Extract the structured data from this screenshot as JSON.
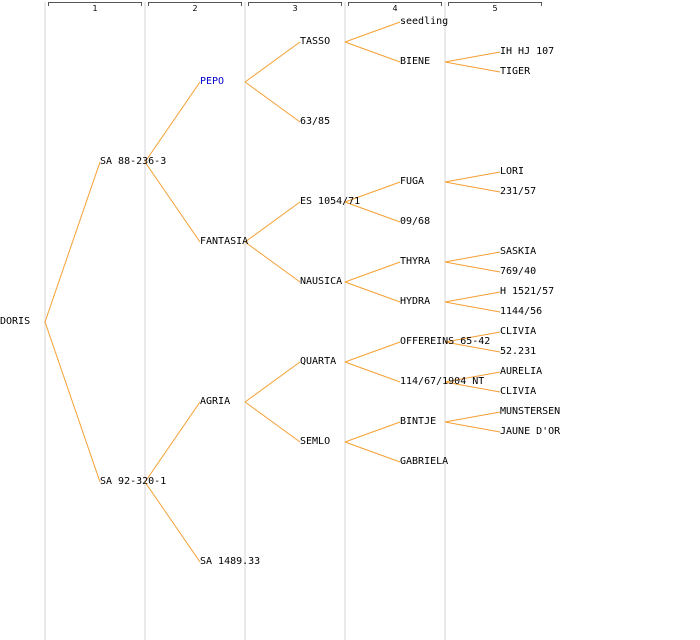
{
  "generations": [
    {
      "label": "1"
    },
    {
      "label": "2"
    },
    {
      "label": "3"
    },
    {
      "label": "4"
    },
    {
      "label": "5"
    }
  ],
  "colors": {
    "line": "#F5A033",
    "text": "#000000",
    "highlight": "#0000CC",
    "column_divider": "#EAEAEA",
    "header_bracket": "#555555"
  },
  "root": {
    "label": "DORIS",
    "children": [
      {
        "label": "SA 88-236-3",
        "children": [
          {
            "label": "PEPO",
            "highlight": true,
            "children": [
              {
                "label": "TASSO",
                "children": [
                  {
                    "label": "seedling"
                  },
                  {
                    "label": "BIENE",
                    "children": [
                      {
                        "label": "IH HJ 107"
                      },
                      {
                        "label": "TIGER"
                      }
                    ]
                  }
                ]
              },
              {
                "label": "63/85"
              }
            ]
          },
          {
            "label": "FANTASIA",
            "children": [
              {
                "label": "ES 1054/71",
                "children": [
                  {
                    "label": "FUGA",
                    "children": [
                      {
                        "label": "LORI"
                      },
                      {
                        "label": "231/57"
                      }
                    ]
                  },
                  {
                    "label": "09/68"
                  }
                ]
              },
              {
                "label": "NAUSICA",
                "children": [
                  {
                    "label": "THYRA",
                    "children": [
                      {
                        "label": "SASKIA"
                      },
                      {
                        "label": "769/40"
                      }
                    ]
                  },
                  {
                    "label": "HYDRA",
                    "children": [
                      {
                        "label": "H 1521/57"
                      },
                      {
                        "label": "1144/56"
                      }
                    ]
                  }
                ]
              }
            ]
          }
        ]
      },
      {
        "label": "SA 92-320-1",
        "children": [
          {
            "label": "AGRIA",
            "children": [
              {
                "label": "QUARTA",
                "children": [
                  {
                    "label": "OFFEREINS 65-42",
                    "children": [
                      {
                        "label": "CLIVIA"
                      },
                      {
                        "label": "52.231"
                      }
                    ]
                  },
                  {
                    "label": "114/67/1904 NT",
                    "children": [
                      {
                        "label": "AURELIA"
                      },
                      {
                        "label": "CLIVIA"
                      }
                    ]
                  }
                ]
              },
              {
                "label": "SEMLO",
                "children": [
                  {
                    "label": "BINTJE",
                    "children": [
                      {
                        "label": "MUNSTERSEN"
                      },
                      {
                        "label": "JAUNE D'OR"
                      }
                    ]
                  },
                  {
                    "label": "GABRIELA"
                  }
                ]
              }
            ]
          },
          {
            "label": "SA 1489.33"
          }
        ]
      }
    ]
  }
}
